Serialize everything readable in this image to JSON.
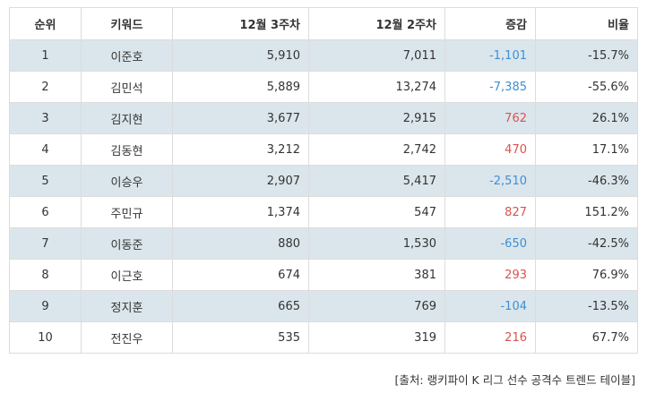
{
  "table": {
    "headers": {
      "rank": "순위",
      "keyword": "키워드",
      "week3": "12월 3주차",
      "week2": "12월 2주차",
      "change": "증감",
      "ratio": "비율"
    },
    "rows": [
      {
        "rank": "1",
        "keyword": "이준호",
        "week3": "5,910",
        "week2": "7,011",
        "change": "-1,101",
        "ratio": "-15.7%",
        "trend": "neg"
      },
      {
        "rank": "2",
        "keyword": "김민석",
        "week3": "5,889",
        "week2": "13,274",
        "change": "-7,385",
        "ratio": "-55.6%",
        "trend": "neg"
      },
      {
        "rank": "3",
        "keyword": "김지현",
        "week3": "3,677",
        "week2": "2,915",
        "change": "762",
        "ratio": "26.1%",
        "trend": "pos"
      },
      {
        "rank": "4",
        "keyword": "김동현",
        "week3": "3,212",
        "week2": "2,742",
        "change": "470",
        "ratio": "17.1%",
        "trend": "pos"
      },
      {
        "rank": "5",
        "keyword": "이승우",
        "week3": "2,907",
        "week2": "5,417",
        "change": "-2,510",
        "ratio": "-46.3%",
        "trend": "neg"
      },
      {
        "rank": "6",
        "keyword": "주민규",
        "week3": "1,374",
        "week2": "547",
        "change": "827",
        "ratio": "151.2%",
        "trend": "pos"
      },
      {
        "rank": "7",
        "keyword": "이동준",
        "week3": "880",
        "week2": "1,530",
        "change": "-650",
        "ratio": "-42.5%",
        "trend": "neg"
      },
      {
        "rank": "8",
        "keyword": "이근호",
        "week3": "674",
        "week2": "381",
        "change": "293",
        "ratio": "76.9%",
        "trend": "pos"
      },
      {
        "rank": "9",
        "keyword": "정지훈",
        "week3": "665",
        "week2": "769",
        "change": "-104",
        "ratio": "-13.5%",
        "trend": "neg"
      },
      {
        "rank": "10",
        "keyword": "전진우",
        "week3": "535",
        "week2": "319",
        "change": "216",
        "ratio": "67.7%",
        "trend": "pos"
      }
    ]
  },
  "source": "[출처: 랭키파이 K 리그 선수 공격수 트렌드 테이블]",
  "colors": {
    "shade_row": "#dbe6ec",
    "negative": "#3d8fd6",
    "positive": "#d9534f",
    "border": "#dcdcdc"
  }
}
